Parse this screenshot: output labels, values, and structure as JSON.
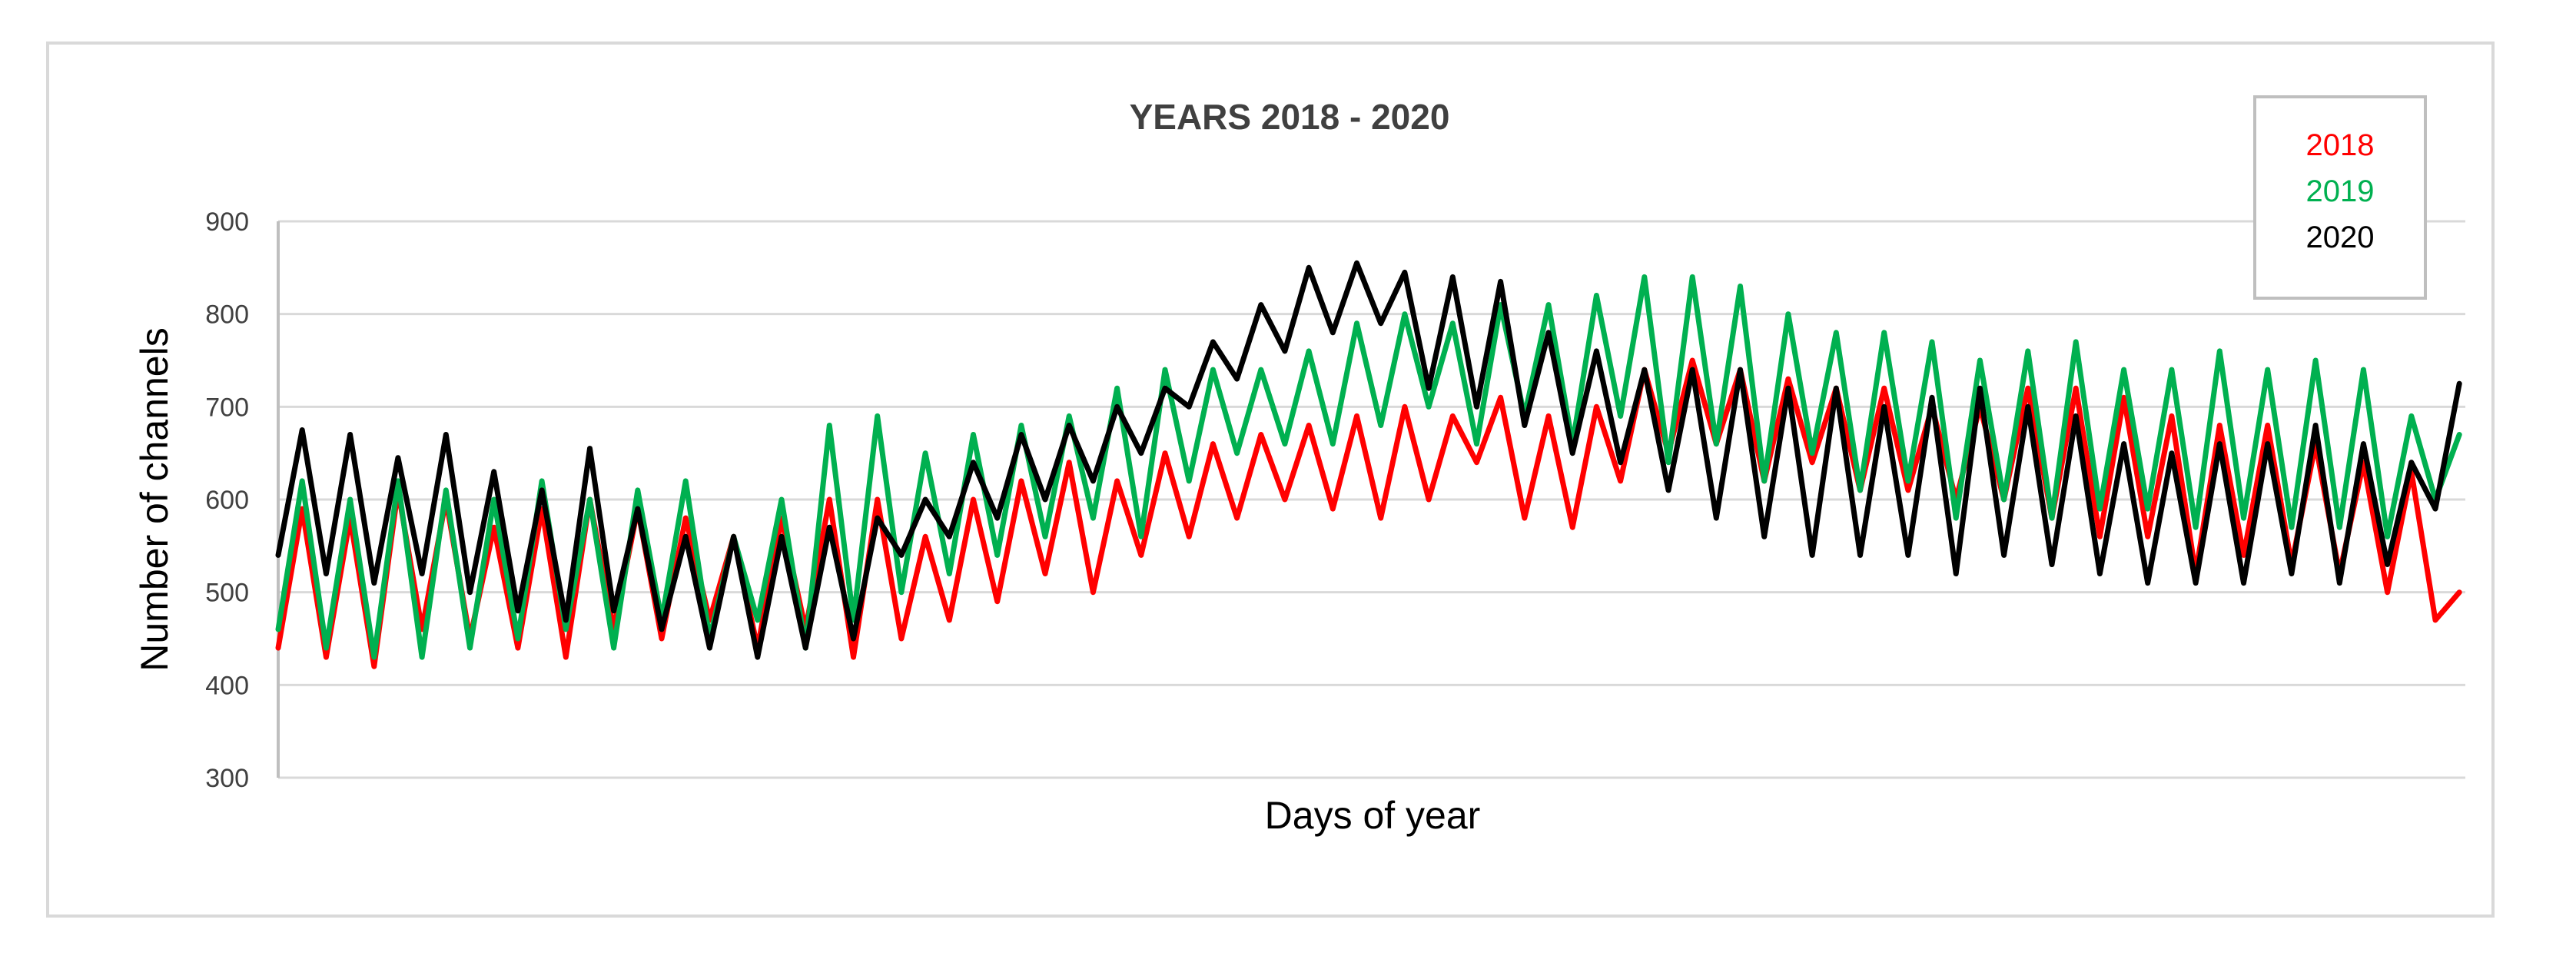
{
  "chart_data": {
    "type": "line",
    "title": "YEARS 2018 - 2020",
    "xlabel": "Days of year",
    "ylabel": "Number of channels",
    "ylim": [
      300,
      900
    ],
    "yticks": [
      "300",
      "400",
      "500",
      "600",
      "700",
      "800",
      "900"
    ],
    "xlim": [
      1,
      366
    ],
    "grid": "horizontal",
    "legend_position": "top-right",
    "series": [
      {
        "name": "2018",
        "color": "#ff0000",
        "days": [
          1,
          5,
          9,
          13,
          17,
          21,
          25,
          29,
          33,
          37,
          41,
          45,
          49,
          53,
          57,
          61,
          65,
          69,
          73,
          77,
          81,
          85,
          89,
          93,
          97,
          101,
          105,
          109,
          113,
          117,
          121,
          125,
          129,
          133,
          137,
          141,
          145,
          149,
          153,
          157,
          161,
          165,
          169,
          173,
          177,
          181,
          185,
          189,
          193,
          197,
          201,
          205,
          209,
          213,
          217,
          221,
          225,
          229,
          233,
          237,
          241,
          245,
          249,
          253,
          257,
          261,
          265,
          269,
          273,
          277,
          281,
          285,
          289,
          293,
          297,
          301,
          305,
          309,
          313,
          317,
          321,
          325,
          329,
          333,
          337,
          341,
          345,
          349,
          353,
          357,
          361,
          365
        ],
        "values": [
          440,
          590,
          430,
          580,
          420,
          610,
          460,
          600,
          450,
          570,
          440,
          590,
          430,
          600,
          460,
          590,
          450,
          580,
          470,
          560,
          440,
          580,
          460,
          600,
          430,
          600,
          450,
          560,
          470,
          600,
          490,
          620,
          520,
          640,
          500,
          620,
          540,
          650,
          560,
          660,
          580,
          670,
          600,
          680,
          590,
          690,
          580,
          700,
          600,
          690,
          640,
          710,
          580,
          690,
          570,
          700,
          620,
          740,
          650,
          750,
          660,
          740,
          620,
          730,
          640,
          720,
          610,
          720,
          610,
          700,
          600,
          700,
          600,
          720,
          580,
          720,
          560,
          710,
          560,
          690,
          520,
          680,
          540,
          680,
          530,
          660,
          520,
          640,
          500,
          630,
          470,
          500
        ]
      },
      {
        "name": "2019",
        "color": "#00b050",
        "days": [
          1,
          5,
          9,
          13,
          17,
          21,
          25,
          29,
          33,
          37,
          41,
          45,
          49,
          53,
          57,
          61,
          65,
          69,
          73,
          77,
          81,
          85,
          89,
          93,
          97,
          101,
          105,
          109,
          113,
          117,
          121,
          125,
          129,
          133,
          137,
          141,
          145,
          149,
          153,
          157,
          161,
          165,
          169,
          173,
          177,
          181,
          185,
          189,
          193,
          197,
          201,
          205,
          209,
          213,
          217,
          221,
          225,
          229,
          233,
          237,
          241,
          245,
          249,
          253,
          257,
          261,
          265,
          269,
          273,
          277,
          281,
          285,
          289,
          293,
          297,
          301,
          305,
          309,
          313,
          317,
          321,
          325,
          329,
          333,
          337,
          341,
          345,
          349,
          353,
          357,
          361,
          365
        ],
        "values": [
          460,
          620,
          440,
          600,
          430,
          620,
          430,
          610,
          440,
          600,
          450,
          620,
          460,
          600,
          440,
          610,
          470,
          620,
          450,
          560,
          470,
          600,
          440,
          680,
          470,
          690,
          500,
          650,
          520,
          670,
          540,
          680,
          560,
          690,
          580,
          720,
          560,
          740,
          620,
          740,
          650,
          740,
          660,
          760,
          660,
          790,
          680,
          800,
          700,
          790,
          660,
          810,
          690,
          810,
          660,
          820,
          690,
          840,
          640,
          840,
          660,
          830,
          620,
          800,
          650,
          780,
          610,
          780,
          620,
          770,
          580,
          750,
          600,
          760,
          580,
          770,
          590,
          740,
          590,
          740,
          570,
          760,
          580,
          740,
          570,
          750,
          570,
          740,
          560,
          690,
          600,
          670
        ]
      },
      {
        "name": "2020",
        "color": "#000000",
        "days": [
          1,
          5,
          9,
          13,
          17,
          21,
          25,
          29,
          33,
          37,
          41,
          45,
          49,
          53,
          57,
          61,
          65,
          69,
          73,
          77,
          81,
          85,
          89,
          93,
          97,
          101,
          105,
          109,
          113,
          117,
          121,
          125,
          129,
          133,
          137,
          141,
          145,
          149,
          153,
          157,
          161,
          165,
          169,
          173,
          177,
          181,
          185,
          189,
          193,
          197,
          201,
          205,
          209,
          213,
          217,
          221,
          225,
          229,
          233,
          237,
          241,
          245,
          249,
          253,
          257,
          261,
          265,
          269,
          273,
          277,
          281,
          285,
          289,
          293,
          297,
          301,
          305,
          309,
          313,
          317,
          321,
          325,
          329,
          333,
          337,
          341,
          345,
          349,
          353,
          357,
          361,
          365
        ],
        "values": [
          540,
          675,
          520,
          670,
          510,
          645,
          520,
          670,
          500,
          630,
          480,
          610,
          470,
          655,
          480,
          590,
          460,
          560,
          440,
          560,
          430,
          560,
          440,
          570,
          450,
          580,
          540,
          600,
          560,
          640,
          580,
          670,
          600,
          680,
          620,
          700,
          650,
          720,
          700,
          770,
          730,
          810,
          760,
          850,
          780,
          855,
          790,
          845,
          720,
          840,
          700,
          835,
          680,
          780,
          650,
          760,
          640,
          740,
          610,
          740,
          580,
          740,
          560,
          720,
          540,
          720,
          540,
          700,
          540,
          710,
          520,
          720,
          540,
          700,
          530,
          690,
          520,
          660,
          510,
          650,
          510,
          660,
          510,
          660,
          520,
          680,
          510,
          660,
          530,
          640,
          590,
          725
        ]
      }
    ]
  }
}
